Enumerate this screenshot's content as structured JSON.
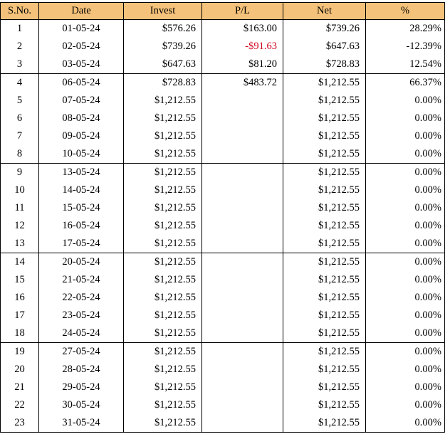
{
  "headers": [
    "S.No.",
    "Date",
    "Invest",
    "P/L",
    "Net",
    "%"
  ],
  "rows": [
    {
      "sno": "1",
      "date": "01-05-24",
      "invest": "$576.26",
      "pl": "$163.00",
      "net": "$739.26",
      "pct": "28.29%",
      "week_start": true
    },
    {
      "sno": "2",
      "date": "02-05-24",
      "invest": "$739.26",
      "pl": "-$91.63",
      "net": "$647.63",
      "pct": "-12.39%",
      "pl_negative": true
    },
    {
      "sno": "3",
      "date": "03-05-24",
      "invest": "$647.63",
      "pl": "$81.20",
      "net": "$728.83",
      "pct": "12.54%"
    },
    {
      "sno": "4",
      "date": "06-05-24",
      "invest": "$728.83",
      "pl": "$483.72",
      "net": "$1,212.55",
      "pct": "66.37%",
      "week_start": true
    },
    {
      "sno": "5",
      "date": "07-05-24",
      "invest": "$1,212.55",
      "pl": "",
      "net": "$1,212.55",
      "pct": "0.00%"
    },
    {
      "sno": "6",
      "date": "08-05-24",
      "invest": "$1,212.55",
      "pl": "",
      "net": "$1,212.55",
      "pct": "0.00%"
    },
    {
      "sno": "7",
      "date": "09-05-24",
      "invest": "$1,212.55",
      "pl": "",
      "net": "$1,212.55",
      "pct": "0.00%"
    },
    {
      "sno": "8",
      "date": "10-05-24",
      "invest": "$1,212.55",
      "pl": "",
      "net": "$1,212.55",
      "pct": "0.00%"
    },
    {
      "sno": "9",
      "date": "13-05-24",
      "invest": "$1,212.55",
      "pl": "",
      "net": "$1,212.55",
      "pct": "0.00%",
      "week_start": true
    },
    {
      "sno": "10",
      "date": "14-05-24",
      "invest": "$1,212.55",
      "pl": "",
      "net": "$1,212.55",
      "pct": "0.00%"
    },
    {
      "sno": "11",
      "date": "15-05-24",
      "invest": "$1,212.55",
      "pl": "",
      "net": "$1,212.55",
      "pct": "0.00%"
    },
    {
      "sno": "12",
      "date": "16-05-24",
      "invest": "$1,212.55",
      "pl": "",
      "net": "$1,212.55",
      "pct": "0.00%"
    },
    {
      "sno": "13",
      "date": "17-05-24",
      "invest": "$1,212.55",
      "pl": "",
      "net": "$1,212.55",
      "pct": "0.00%"
    },
    {
      "sno": "14",
      "date": "20-05-24",
      "invest": "$1,212.55",
      "pl": "",
      "net": "$1,212.55",
      "pct": "0.00%",
      "week_start": true
    },
    {
      "sno": "15",
      "date": "21-05-24",
      "invest": "$1,212.55",
      "pl": "",
      "net": "$1,212.55",
      "pct": "0.00%"
    },
    {
      "sno": "16",
      "date": "22-05-24",
      "invest": "$1,212.55",
      "pl": "",
      "net": "$1,212.55",
      "pct": "0.00%"
    },
    {
      "sno": "17",
      "date": "23-05-24",
      "invest": "$1,212.55",
      "pl": "",
      "net": "$1,212.55",
      "pct": "0.00%"
    },
    {
      "sno": "18",
      "date": "24-05-24",
      "invest": "$1,212.55",
      "pl": "",
      "net": "$1,212.55",
      "pct": "0.00%"
    },
    {
      "sno": "19",
      "date": "27-05-24",
      "invest": "$1,212.55",
      "pl": "",
      "net": "$1,212.55",
      "pct": "0.00%",
      "week_start": true
    },
    {
      "sno": "20",
      "date": "28-05-24",
      "invest": "$1,212.55",
      "pl": "",
      "net": "$1,212.55",
      "pct": "0.00%"
    },
    {
      "sno": "21",
      "date": "29-05-24",
      "invest": "$1,212.55",
      "pl": "",
      "net": "$1,212.55",
      "pct": "0.00%"
    },
    {
      "sno": "22",
      "date": "30-05-24",
      "invest": "$1,212.55",
      "pl": "",
      "net": "$1,212.55",
      "pct": "0.00%"
    },
    {
      "sno": "23",
      "date": "31-05-24",
      "invest": "$1,212.55",
      "pl": "",
      "net": "$1,212.55",
      "pct": "0.00%"
    }
  ],
  "colors": {
    "header_bg": "#f4c27a",
    "negative": "#d0021b",
    "text": "#000000"
  }
}
